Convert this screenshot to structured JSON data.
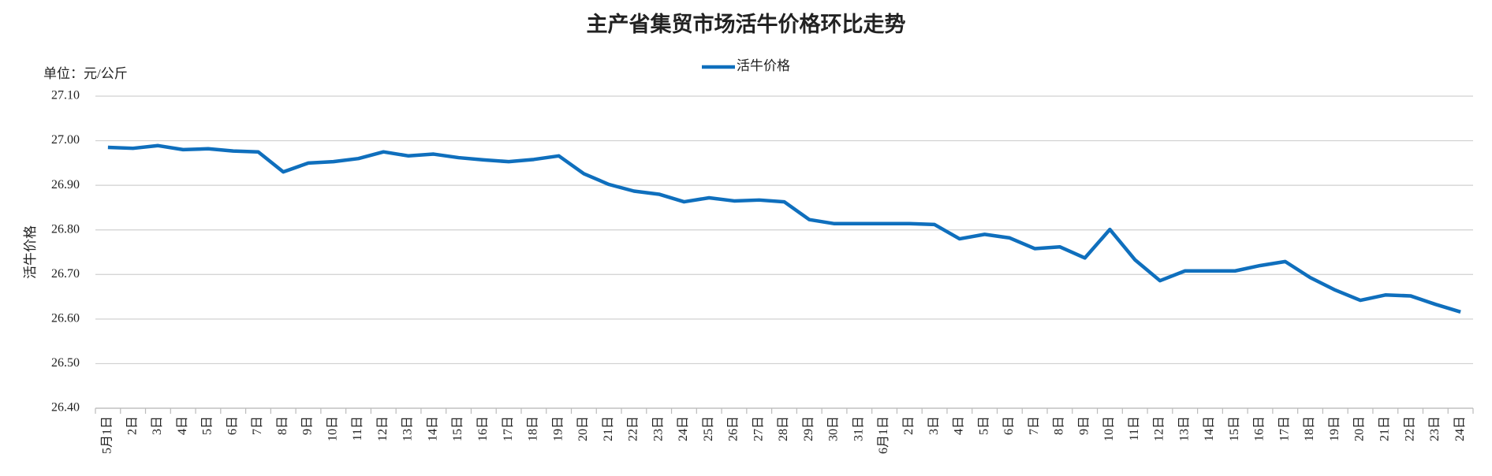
{
  "chart_data": {
    "type": "line",
    "title": "主产省集贸市场活牛价格环比走势",
    "unit_label": "单位：元/公斤",
    "y_axis_label": "活牛价格",
    "categories": [
      "5月1日",
      "2日",
      "3日",
      "4日",
      "5日",
      "6日",
      "7日",
      "8日",
      "9日",
      "10日",
      "11日",
      "12日",
      "13日",
      "14日",
      "15日",
      "16日",
      "17日",
      "18日",
      "19日",
      "20日",
      "21日",
      "22日",
      "23日",
      "24日",
      "25日",
      "26日",
      "27日",
      "28日",
      "29日",
      "30日",
      "31日",
      "6月1日",
      "2日",
      "3日",
      "4日",
      "5日",
      "6日",
      "7日",
      "8日",
      "9日",
      "10日",
      "11日",
      "12日",
      "13日",
      "14日",
      "15日",
      "16日",
      "17日",
      "18日",
      "19日",
      "20日",
      "21日",
      "22日",
      "23日",
      "24日"
    ],
    "series": [
      {
        "name": "活牛价格",
        "color": "#0f6fbd",
        "values": [
          26.985,
          26.983,
          26.989,
          26.98,
          26.982,
          26.977,
          26.975,
          26.93,
          26.95,
          26.953,
          26.96,
          26.975,
          26.966,
          26.97,
          26.962,
          26.957,
          26.953,
          26.958,
          26.966,
          26.926,
          26.902,
          26.887,
          26.88,
          26.863,
          26.872,
          26.865,
          26.867,
          26.863,
          26.823,
          26.814,
          26.814,
          26.814,
          26.814,
          26.812,
          26.78,
          26.79,
          26.782,
          26.758,
          26.762,
          26.737,
          26.801,
          26.733,
          26.686,
          26.708,
          26.708,
          26.708,
          26.72,
          26.729,
          26.693,
          26.665,
          26.642,
          26.654,
          26.652,
          26.633,
          26.616
        ]
      }
    ],
    "ylim": [
      26.4,
      27.1
    ],
    "yticks": [
      {
        "value": 26.4,
        "label": "26.40"
      },
      {
        "value": 26.5,
        "label": "26.50"
      },
      {
        "value": 26.6,
        "label": "26.60"
      },
      {
        "value": 26.7,
        "label": "26.70"
      },
      {
        "value": 26.8,
        "label": "26.80"
      },
      {
        "value": 26.9,
        "label": "26.90"
      },
      {
        "value": 27.0,
        "label": "27.00"
      },
      {
        "value": 27.1,
        "label": "27.10"
      }
    ],
    "grid": true,
    "legend": "top"
  }
}
